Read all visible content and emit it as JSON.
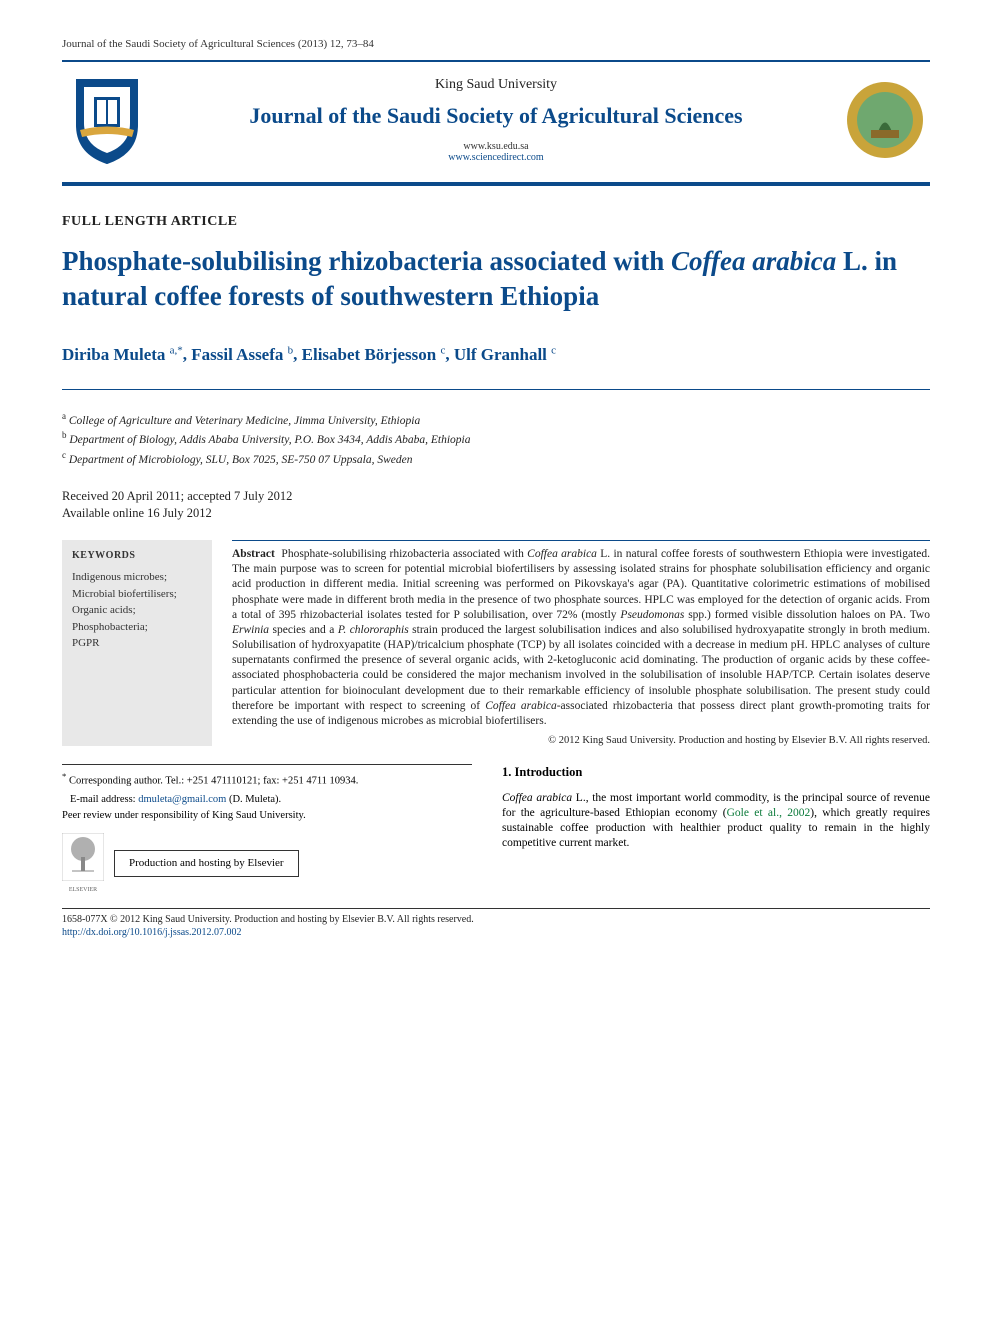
{
  "journal_ref": "Journal of the Saudi Society of Agricultural Sciences (2013) 12, 73–84",
  "header": {
    "publisher": "King Saud University",
    "journal": "Journal of the Saudi Society of Agricultural Sciences",
    "link1": "www.ksu.edu.sa",
    "link2": "www.sciencedirect.com",
    "left_logo_colors": {
      "shield_fill": "#0b4a8a",
      "shield_inner": "#ffffff",
      "ribbon": "#d9a63e"
    },
    "right_logo_colors": {
      "outer": "#c9a43a",
      "inner": "#6fa86f"
    }
  },
  "article_type": "FULL LENGTH ARTICLE",
  "title_parts": {
    "pre": "Phosphate-solubilising rhizobacteria associated with ",
    "ital": "Coffea arabica",
    "post": " L. in natural coffee forests of southwestern Ethiopia"
  },
  "authors": [
    {
      "name": "Diriba Muleta",
      "sup": "a,*"
    },
    {
      "name": "Fassil Assefa",
      "sup": "b"
    },
    {
      "name": "Elisabet Börjesson",
      "sup": "c"
    },
    {
      "name": "Ulf Granhall",
      "sup": "c"
    }
  ],
  "affiliations": [
    {
      "sup": "a",
      "text": "College of Agriculture and Veterinary Medicine, Jimma University, Ethiopia"
    },
    {
      "sup": "b",
      "text": "Department of Biology, Addis Ababa University, P.O. Box 3434, Addis Ababa, Ethiopia"
    },
    {
      "sup": "c",
      "text": "Department of Microbiology, SLU, Box 7025, SE-750 07 Uppsala, Sweden"
    }
  ],
  "dates": {
    "received_accepted": "Received 20 April 2011; accepted 7 July 2012",
    "online": "Available online 16 July 2012"
  },
  "keywords": {
    "title": "KEYWORDS",
    "items": [
      "Indigenous microbes;",
      "Microbial biofertilisers;",
      "Organic acids;",
      "Phosphobacteria;",
      "PGPR"
    ]
  },
  "abstract": {
    "label": "Abstract",
    "body_pre": "Phosphate-solubilising rhizobacteria associated with ",
    "body_ital1": "Coffea arabica",
    "body_mid": " L. in natural coffee forests of southwestern Ethiopia were investigated. The main purpose was to screen for potential microbial biofertilisers by assessing isolated strains for phosphate solubilisation efficiency and organic acid production in different media. Initial screening was performed on Pikovskaya's agar (PA). Quantitative colorimetric estimations of mobilised phosphate were made in different broth media in the presence of two phosphate sources. HPLC was employed for the detection of organic acids. From a total of 395 rhizobacterial isolates tested for P solubilisation, over 72% (mostly ",
    "body_ital2": "Pseudomonas",
    "body_mid2": " spp.) formed visible dissolution haloes on PA. Two ",
    "body_ital3": "Erwinia",
    "body_mid3": " species and a ",
    "body_ital4": "P. chlororaphis",
    "body_mid4": " strain produced the largest solubilisation indices and also solubilised hydroxyapatite strongly in broth medium. Solubilisation of hydroxyapatite (HAP)/tricalcium phosphate (TCP) by all isolates coincided with a decrease in medium pH. HPLC analyses of culture supernatants confirmed the presence of several organic acids, with 2-ketogluconic acid dominating. The production of organic acids by these coffee-associated phosphobacteria could be considered the major mechanism involved in the solubilisation of insoluble HAP/TCP. Certain isolates deserve particular attention for bioinoculant development due to their remarkable efficiency of insoluble phosphate solubilisation. The present study could therefore be important with respect to screening of ",
    "body_ital5": "Coffea arabica",
    "body_post": "-associated rhizobacteria that possess direct plant growth-promoting traits for extending the use of indigenous microbes as microbial biofertilisers."
  },
  "copyright": "© 2012 King Saud University. Production and hosting by Elsevier B.V. All rights reserved.",
  "correspondence": {
    "star": "*",
    "text": "Corresponding author. Tel.: +251 471110121; fax: +251 4711 10934.",
    "email_label": "E-mail address: ",
    "email": "dmuleta@gmail.com",
    "email_suffix": " (D. Muleta).",
    "peer": "Peer review under responsibility of King Saud University.",
    "prod_hosting": "Production and hosting by Elsevier",
    "elsevier_label": "ELSEVIER"
  },
  "introduction": {
    "heading": "1. Introduction",
    "p1_ital": "Coffea arabica",
    "p1_rest": " L., the most important world commodity, is the principal source of revenue for the agriculture-based Ethiopian economy (Gole et al., 2002), which greatly requires sustainable coffee production with healthier product quality to remain in the highly competitive current market.",
    "citation_color": "#0b7a3a"
  },
  "footer": {
    "issn_line": "1658-077X © 2012 King Saud University. Production and hosting by Elsevier B.V. All rights reserved.",
    "doi": "http://dx.doi.org/10.1016/j.jssas.2012.07.002"
  },
  "colors": {
    "brand_blue": "#0b4a8a",
    "text": "#222222",
    "kw_bg": "#e8e8e8",
    "citation_green": "#0b7a3a"
  }
}
